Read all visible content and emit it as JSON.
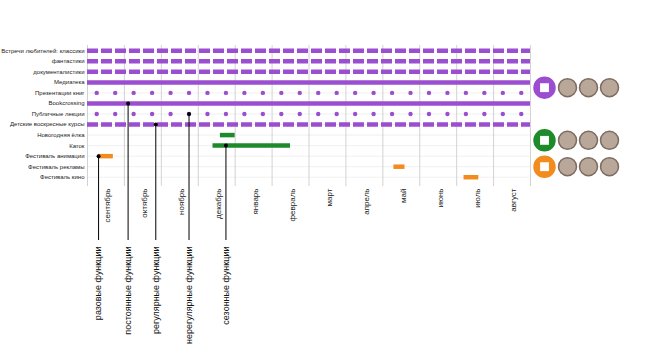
{
  "chart_data": {
    "type": "timeline",
    "categories": [
      "сентябрь",
      "октябрь",
      "ноябрь",
      "декабрь",
      "январь",
      "февраль",
      "март",
      "апрель",
      "май",
      "июнь",
      "июль",
      "август"
    ],
    "xlim": [
      0,
      12
    ],
    "grid": true,
    "series": [
      {
        "name": "Встречи любителей: классики",
        "color": "#9b4fd0",
        "line_style": "dashed",
        "spans": [
          [
            0,
            12
          ]
        ]
      },
      {
        "name": "фантастики",
        "color": "#9b4fd0",
        "line_style": "dashed",
        "spans": [
          [
            0,
            12
          ]
        ]
      },
      {
        "name": "документалистики",
        "color": "#9b4fd0",
        "line_style": "dashed",
        "spans": [
          [
            0,
            12
          ]
        ]
      },
      {
        "name": "Медиатека",
        "color": "#9b4fd0",
        "line_style": "solid",
        "spans": [
          [
            0,
            12
          ]
        ]
      },
      {
        "name": "Презентации книг",
        "color": "#9b4fd0",
        "marker": "dot",
        "points": [
          0.25,
          0.75,
          1.25,
          1.75,
          2.25,
          2.75,
          3.25,
          3.75,
          4.25,
          4.75,
          5.25,
          5.75,
          6.25,
          6.75,
          7.25,
          7.75,
          8.25,
          8.75,
          9.25,
          9.75,
          10.25,
          10.75,
          11.25,
          11.75
        ]
      },
      {
        "name": "Bookcrossing",
        "color": "#9b4fd0",
        "line_style": "solid",
        "spans": [
          [
            0,
            12
          ]
        ]
      },
      {
        "name": "Публичные лекции",
        "color": "#9b4fd0",
        "marker": "dot",
        "points": [
          0.25,
          0.75,
          1.25,
          1.75,
          2.25,
          2.75,
          3.25,
          3.75,
          4.25,
          4.75,
          5.25,
          5.75,
          6.25,
          6.75,
          7.25,
          7.75,
          8.25,
          8.75,
          9.25,
          9.75,
          10.25,
          10.75,
          11.25,
          11.75
        ]
      },
      {
        "name": "Детские воскресные курсы",
        "color": "#9b4fd0",
        "line_style": "dashed",
        "spans": [
          [
            0,
            12
          ]
        ]
      },
      {
        "name": "Новогодняя ёлка",
        "color": "#1e8a2a",
        "line_style": "solid",
        "spans": [
          [
            3.6,
            4.0
          ]
        ]
      },
      {
        "name": "Каток",
        "color": "#1e8a2a",
        "line_style": "solid",
        "spans": [
          [
            3.4,
            5.5
          ]
        ]
      },
      {
        "name": "Фестиваль анимации",
        "color": "#f28c1e",
        "line_style": "solid",
        "spans": [
          [
            0.3,
            0.7
          ]
        ]
      },
      {
        "name": "Фестиваль рекламы",
        "color": "#f28c1e",
        "line_style": "solid",
        "spans": [
          [
            8.3,
            8.6
          ]
        ]
      },
      {
        "name": "Фестиваль кино",
        "color": "#f28c1e",
        "line_style": "solid",
        "spans": [
          [
            10.2,
            10.6
          ]
        ]
      }
    ],
    "annotations": [
      {
        "label": "разовые функции",
        "series": "Фестиваль анимации",
        "x": 0.3
      },
      {
        "label": "постоянные функции",
        "series": "Bookcrossing",
        "x": 1.1
      },
      {
        "label": "регулярные функции",
        "series": "Детские воскресные курсы",
        "x": 1.85
      },
      {
        "label": "нерегулярные функции",
        "series": "Публичные лекции",
        "x": 2.75
      },
      {
        "label": "сезонные функции",
        "series": "Каток",
        "x": 3.75
      }
    ]
  }
}
